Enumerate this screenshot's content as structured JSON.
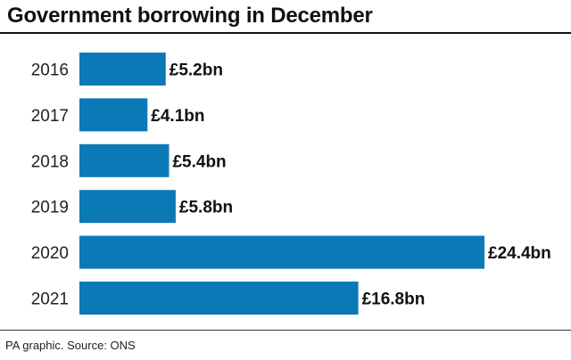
{
  "chart_data": {
    "type": "bar",
    "orientation": "horizontal",
    "title": "Government borrowing in December",
    "categories": [
      "2016",
      "2017",
      "2018",
      "2019",
      "2020",
      "2021"
    ],
    "values": [
      5.2,
      4.1,
      5.4,
      5.8,
      24.4,
      16.8
    ],
    "data_labels": [
      "£5.2bn",
      "£4.1bn",
      "£5.4bn",
      "£5.8bn",
      "£24.4bn",
      "£16.8bn"
    ],
    "unit": "£bn",
    "xlim": [
      0,
      24.4
    ],
    "bar_color": "#0b79b6",
    "grid": false,
    "legend": "none"
  },
  "footer": {
    "source": "PA graphic. Source: ONS"
  }
}
